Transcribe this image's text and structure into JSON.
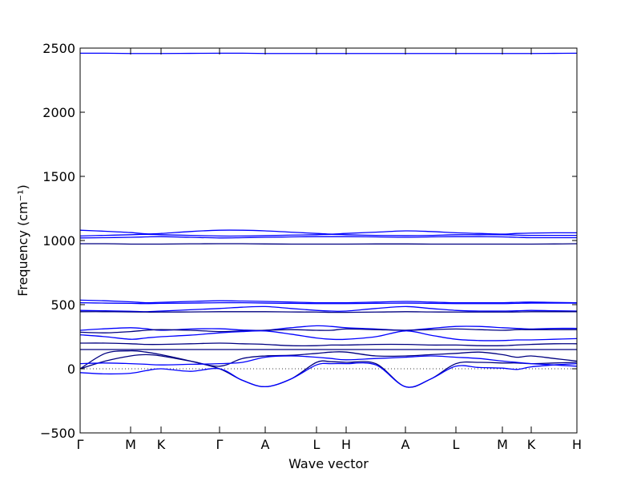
{
  "chart_data": {
    "type": "line",
    "xlabel": "Wave vector",
    "ylabel": "Frequency (cm⁻¹)",
    "xlim": [
      0,
      6.2
    ],
    "ylim": [
      -500,
      2500
    ],
    "yticks": [
      {
        "value": -500,
        "label": "−500"
      },
      0,
      500,
      1000,
      1500,
      2000,
      2500
    ],
    "xticks": [
      {
        "value": 0,
        "label": "Γ"
      },
      {
        "value": 0.63,
        "label": "M"
      },
      {
        "value": 1.01,
        "label": "K"
      },
      {
        "value": 1.74,
        "label": "Γ"
      },
      {
        "value": 2.31,
        "label": "A"
      },
      {
        "value": 2.95,
        "label": "L"
      },
      {
        "value": 3.32,
        "label": "H"
      },
      {
        "value": 4.06,
        "label": "A"
      },
      {
        "value": 4.69,
        "label": "L"
      },
      {
        "value": 5.27,
        "label": "M"
      },
      {
        "value": 5.63,
        "label": "K"
      },
      {
        "value": 6.2,
        "label": "H"
      }
    ],
    "grid": false,
    "x": [
      0,
      0.315,
      0.63,
      0.82,
      1.01,
      1.375,
      1.74,
      2.025,
      2.31,
      2.63,
      2.95,
      3.135,
      3.32,
      3.69,
      4.06,
      4.375,
      4.69,
      4.98,
      5.27,
      5.45,
      5.63,
      5.915,
      6.2
    ],
    "series": [
      {
        "color": "#0000ff",
        "values": [
          2460,
          2460,
          2458,
          2458,
          2458,
          2459,
          2460,
          2460,
          2458,
          2458,
          2458,
          2458,
          2458,
          2458,
          2458,
          2458,
          2458,
          2458,
          2458,
          2458,
          2458,
          2459,
          2460
        ]
      },
      {
        "color": "#0000ff",
        "values": [
          1080,
          1072,
          1062,
          1052,
          1055,
          1070,
          1080,
          1080,
          1075,
          1065,
          1055,
          1050,
          1055,
          1065,
          1075,
          1070,
          1060,
          1055,
          1050,
          1055,
          1058,
          1060,
          1060
        ]
      },
      {
        "color": "#0000ff",
        "values": [
          1035,
          1040,
          1045,
          1048,
          1045,
          1040,
          1035,
          1035,
          1038,
          1042,
          1045,
          1048,
          1045,
          1040,
          1038,
          1040,
          1045,
          1045,
          1045,
          1042,
          1040,
          1040,
          1040
        ]
      },
      {
        "color": "#0000ff",
        "values": [
          1020,
          1022,
          1025,
          1028,
          1030,
          1025,
          1020,
          1022,
          1025,
          1028,
          1030,
          1030,
          1030,
          1028,
          1025,
          1028,
          1030,
          1030,
          1028,
          1025,
          1022,
          1022,
          1022
        ]
      },
      {
        "color": "#000080",
        "values": [
          975,
          975,
          972,
          972,
          972,
          974,
          975,
          975,
          973,
          972,
          972,
          972,
          972,
          973,
          973,
          972,
          972,
          972,
          972,
          972,
          972,
          973,
          975
        ]
      },
      {
        "color": "#0000ff",
        "values": [
          535,
          530,
          522,
          515,
          518,
          525,
          530,
          528,
          525,
          520,
          515,
          515,
          515,
          520,
          525,
          520,
          515,
          515,
          515,
          518,
          520,
          517,
          515
        ]
      },
      {
        "color": "#0000ff",
        "values": [
          515,
          512,
          510,
          508,
          510,
          512,
          515,
          515,
          512,
          510,
          508,
          508,
          508,
          510,
          512,
          510,
          508,
          508,
          508,
          510,
          512,
          512,
          512
        ]
      },
      {
        "color": "#0000ff",
        "values": [
          455,
          452,
          448,
          445,
          450,
          460,
          470,
          480,
          485,
          470,
          455,
          450,
          450,
          470,
          485,
          470,
          455,
          450,
          450,
          452,
          455,
          452,
          450
        ]
      },
      {
        "color": "#000080",
        "values": [
          445,
          445,
          443,
          442,
          442,
          443,
          445,
          445,
          445,
          443,
          442,
          440,
          440,
          442,
          445,
          443,
          442,
          442,
          442,
          443,
          445,
          445,
          445
        ]
      },
      {
        "color": "#0000ff",
        "values": [
          300,
          312,
          320,
          312,
          300,
          310,
          312,
          302,
          300,
          320,
          335,
          330,
          320,
          310,
          300,
          315,
          330,
          330,
          320,
          315,
          310,
          315,
          315
        ]
      },
      {
        "color": "#000080",
        "values": [
          285,
          280,
          290,
          300,
          305,
          300,
          290,
          295,
          300,
          305,
          300,
          300,
          310,
          305,
          300,
          305,
          310,
          305,
          300,
          305,
          305,
          305,
          305
        ]
      },
      {
        "color": "#0000ff",
        "values": [
          265,
          250,
          230,
          240,
          250,
          262,
          280,
          290,
          295,
          270,
          240,
          230,
          230,
          250,
          295,
          262,
          230,
          220,
          220,
          225,
          225,
          230,
          235
        ]
      },
      {
        "color": "#000080",
        "values": [
          200,
          200,
          195,
          190,
          190,
          195,
          200,
          195,
          190,
          180,
          180,
          185,
          185,
          190,
          190,
          185,
          185,
          180,
          180,
          185,
          190,
          195,
          195
        ]
      },
      {
        "color": "#000080",
        "values": [
          150,
          150,
          150,
          150,
          150,
          150,
          150,
          150,
          150,
          150,
          150,
          150,
          150,
          150,
          150,
          150,
          150,
          150,
          150,
          150,
          150,
          150,
          150
        ]
      },
      {
        "color": "#000080",
        "values": [
          0,
          120,
          140,
          130,
          110,
          60,
          0,
          -90,
          -140,
          -80,
          50,
          55,
          50,
          40,
          -140,
          -80,
          40,
          50,
          45,
          45,
          40,
          45,
          50
        ]
      },
      {
        "color": "#0000ff",
        "values": [
          -30,
          -40,
          -35,
          -15,
          0,
          -20,
          0,
          -90,
          -140,
          -80,
          30,
          40,
          40,
          30,
          -140,
          -80,
          20,
          10,
          5,
          -5,
          15,
          30,
          40
        ]
      },
      {
        "color": "#000080",
        "values": [
          0,
          60,
          100,
          110,
          100,
          60,
          20,
          80,
          100,
          105,
          120,
          130,
          130,
          100,
          100,
          110,
          120,
          130,
          110,
          90,
          100,
          80,
          60
        ]
      },
      {
        "color": "#0000ff",
        "values": [
          40,
          45,
          40,
          35,
          30,
          35,
          40,
          50,
          90,
          100,
          90,
          80,
          70,
          80,
          90,
          100,
          90,
          80,
          60,
          50,
          40,
          30,
          20
        ]
      }
    ]
  }
}
